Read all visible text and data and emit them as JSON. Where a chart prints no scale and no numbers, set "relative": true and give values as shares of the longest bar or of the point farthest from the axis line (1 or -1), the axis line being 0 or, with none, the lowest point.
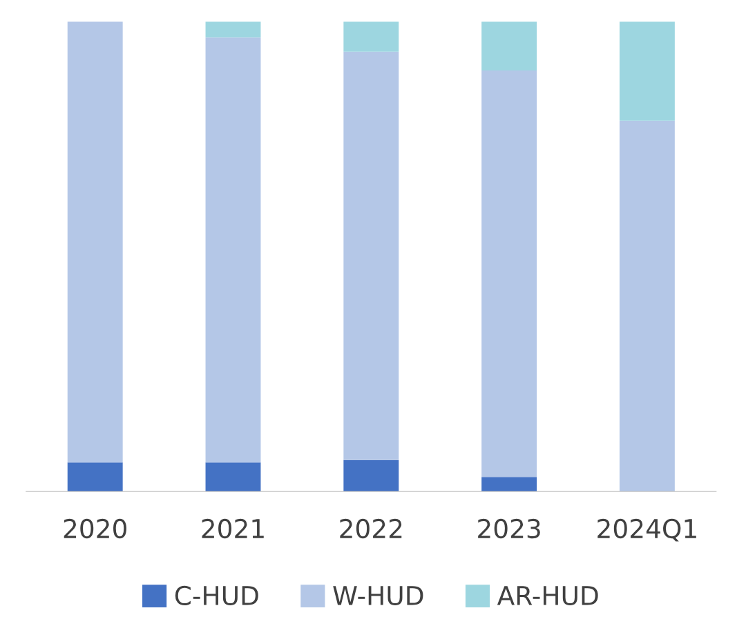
{
  "chart_data": {
    "type": "bar",
    "stacked": true,
    "relative": true,
    "categories": [
      "2020",
      "2021",
      "2022",
      "2023",
      "2024Q1"
    ],
    "series": [
      {
        "name": "C-HUD",
        "color": "#4472c4",
        "values": [
          0.062,
          0.062,
          0.067,
          0.031,
          0
        ]
      },
      {
        "name": "W-HUD",
        "color": "#b4c7e7",
        "values": [
          0.938,
          0.904,
          0.869,
          0.865,
          0.789
        ]
      },
      {
        "name": "AR-HUD",
        "color": "#9dd6e0",
        "values": [
          0,
          0.034,
          0.064,
          0.104,
          0.211
        ]
      }
    ],
    "legend": "bottom",
    "grid": false
  }
}
